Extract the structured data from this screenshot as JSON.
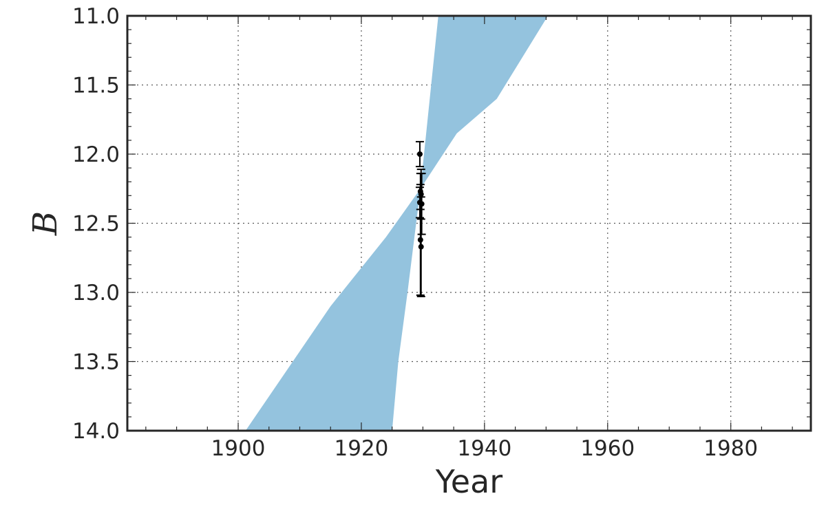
{
  "chart_data": {
    "type": "line",
    "xlabel": "Year",
    "ylabel": "B",
    "xlim": [
      1882,
      1993
    ],
    "ylim": [
      11.0,
      14.0
    ],
    "y_inverted": true,
    "grid": true,
    "x_ticks": [
      1900,
      1920,
      1940,
      1960,
      1980
    ],
    "x_tick_labels": [
      "1900",
      "1920",
      "1940",
      "1960",
      "1980"
    ],
    "y_ticks": [
      11.0,
      11.5,
      12.0,
      12.5,
      13.0,
      13.5,
      14.0
    ],
    "y_tick_labels": [
      "11.0",
      "11.5",
      "12.0",
      "12.5",
      "13.0",
      "13.5",
      "14.0"
    ],
    "band": {
      "color": "#94c3de",
      "upper": [
        {
          "x": 1932.5,
          "y": 11.0
        },
        {
          "x": 1929.6,
          "y": 12.25
        },
        {
          "x": 1927.5,
          "y": 13.0
        },
        {
          "x": 1926.0,
          "y": 13.5
        },
        {
          "x": 1925.0,
          "y": 14.0
        }
      ],
      "lower": [
        {
          "x": 1950.3,
          "y": 11.0
        },
        {
          "x": 1942.0,
          "y": 11.6
        },
        {
          "x": 1935.5,
          "y": 11.85
        },
        {
          "x": 1929.6,
          "y": 12.25
        },
        {
          "x": 1924.0,
          "y": 12.6
        },
        {
          "x": 1915.0,
          "y": 13.1
        },
        {
          "x": 1901.2,
          "y": 14.0
        }
      ]
    },
    "points": {
      "color": "#000000",
      "data": [
        {
          "x": 1929.5,
          "y": 12.0,
          "err": 0.09
        },
        {
          "x": 1929.6,
          "y": 12.27,
          "err": 0.13
        },
        {
          "x": 1929.7,
          "y": 12.29,
          "err": 0.18
        },
        {
          "x": 1929.5,
          "y": 12.35,
          "err": 0.11
        },
        {
          "x": 1929.8,
          "y": 12.36,
          "err": 0.22
        },
        {
          "x": 1929.6,
          "y": 12.62,
          "err": 0.4
        },
        {
          "x": 1929.7,
          "y": 12.67,
          "err": 0.36
        }
      ]
    }
  }
}
